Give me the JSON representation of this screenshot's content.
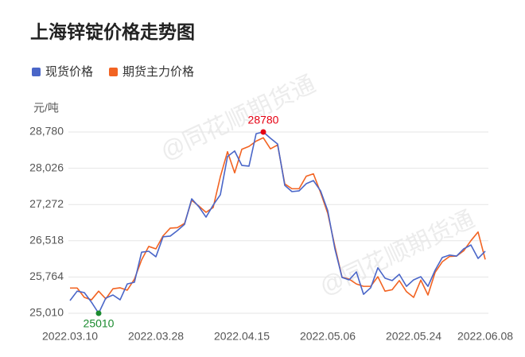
{
  "chart_data": {
    "type": "line",
    "title": "上海锌锭价格走势图",
    "y_unit": "元/吨",
    "watermark": "@同花顺期货通",
    "categories": [
      "2022.03.10",
      null,
      null,
      null,
      null,
      null,
      null,
      null,
      null,
      null,
      null,
      null,
      "2022.03.28",
      null,
      null,
      null,
      null,
      null,
      null,
      null,
      null,
      null,
      null,
      null,
      "2022.04.15",
      null,
      null,
      null,
      null,
      null,
      null,
      null,
      null,
      null,
      null,
      null,
      "2022.05.06",
      null,
      null,
      null,
      null,
      null,
      null,
      null,
      null,
      null,
      null,
      null,
      "2022.05.24",
      null,
      null,
      null,
      null,
      null,
      null,
      null,
      null,
      null,
      "2022.06.08"
    ],
    "series": [
      {
        "name": "现货价格",
        "color": "#4a66c8",
        "values": [
          25275,
          25470,
          25440,
          25240,
          25010,
          25325,
          25390,
          25290,
          25620,
          25655,
          26280,
          26300,
          26185,
          26600,
          26615,
          26730,
          26860,
          27390,
          27225,
          27010,
          27260,
          27475,
          28270,
          28385,
          28085,
          28070,
          28745,
          28780,
          28650,
          28530,
          27670,
          27540,
          27555,
          27705,
          27770,
          27555,
          27145,
          26350,
          25755,
          25705,
          25870,
          25405,
          25540,
          25955,
          25740,
          25690,
          25820,
          25570,
          25705,
          25770,
          25570,
          25905,
          26170,
          26220,
          26200,
          26350,
          26430,
          26150,
          26300
        ]
      },
      {
        "name": "期货主力价格",
        "color": "#f26322",
        "values": [
          25535,
          25535,
          25340,
          25290,
          25470,
          25310,
          25520,
          25540,
          25490,
          25720,
          26120,
          26400,
          26350,
          26620,
          26780,
          26790,
          26880,
          27360,
          27240,
          27110,
          27210,
          27850,
          28370,
          27930,
          28420,
          28480,
          28590,
          28660,
          28430,
          28510,
          27700,
          27600,
          27600,
          27860,
          27910,
          27520,
          27090,
          26400,
          25760,
          25720,
          25620,
          25570,
          25570,
          25770,
          25470,
          25500,
          25690,
          25460,
          25340,
          25700,
          25390,
          25860,
          26080,
          26190,
          26200,
          26310,
          26520,
          26700,
          26130
        ]
      }
    ],
    "max_color": "#e60012",
    "min_color": "#1a8a2e",
    "ylim": [
      25010,
      28780
    ],
    "yticks": [
      {
        "value": 25010,
        "label": "25,010"
      },
      {
        "value": 25764,
        "label": "25,764"
      },
      {
        "value": 26518,
        "label": "26,518"
      },
      {
        "value": 27272,
        "label": "27,272"
      },
      {
        "value": 28026,
        "label": "28,026"
      },
      {
        "value": 28780,
        "label": "28,780"
      }
    ],
    "grid": true
  }
}
